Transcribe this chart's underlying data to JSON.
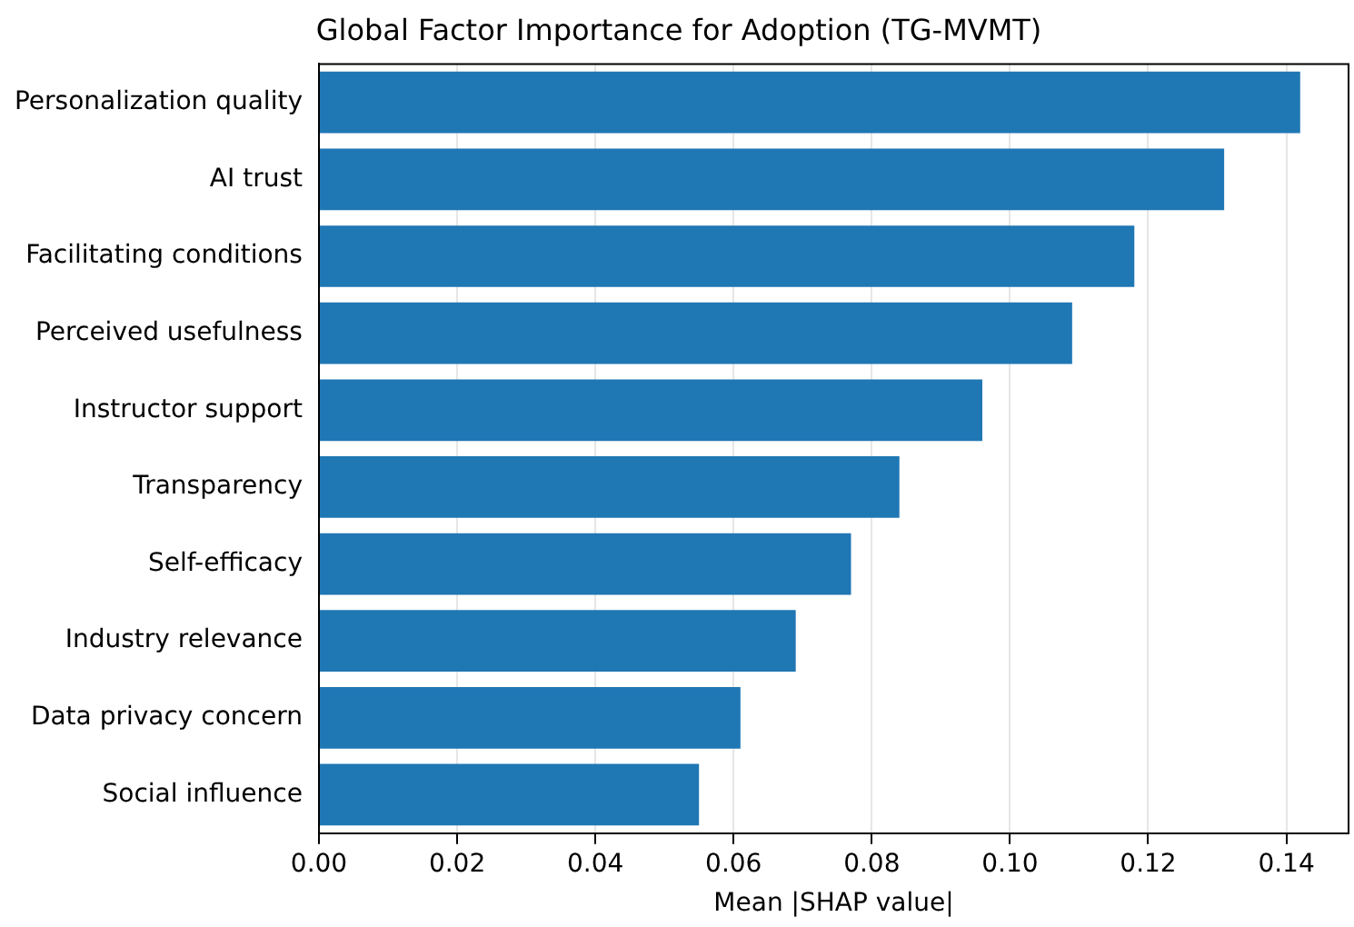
{
  "chart_data": {
    "type": "bar",
    "orientation": "horizontal",
    "title": "Global Factor Importance for Adoption (TG-MVMT)",
    "xlabel": "Mean |SHAP value|",
    "categories": [
      "Personalization quality",
      "AI trust",
      "Facilitating conditions",
      "Perceived usefulness",
      "Instructor support",
      "Transparency",
      "Self-efficacy",
      "Industry relevance",
      "Data privacy concern",
      "Social influence"
    ],
    "values": [
      0.142,
      0.131,
      0.118,
      0.109,
      0.096,
      0.084,
      0.077,
      0.069,
      0.061,
      0.055
    ],
    "color": "#1f77b4",
    "xlim": [
      0,
      0.149
    ],
    "xticks": [
      {
        "value": 0,
        "label": "0.00"
      },
      {
        "value": 0.02,
        "label": "0.02"
      },
      {
        "value": 0.04,
        "label": "0.04"
      },
      {
        "value": 0.06,
        "label": "0.06"
      },
      {
        "value": 0.08,
        "label": "0.08"
      },
      {
        "value": 0.1,
        "label": "0.10"
      },
      {
        "value": 0.12,
        "label": "0.12"
      },
      {
        "value": 0.14,
        "label": "0.14"
      }
    ],
    "grid": "x",
    "legend": false
  }
}
